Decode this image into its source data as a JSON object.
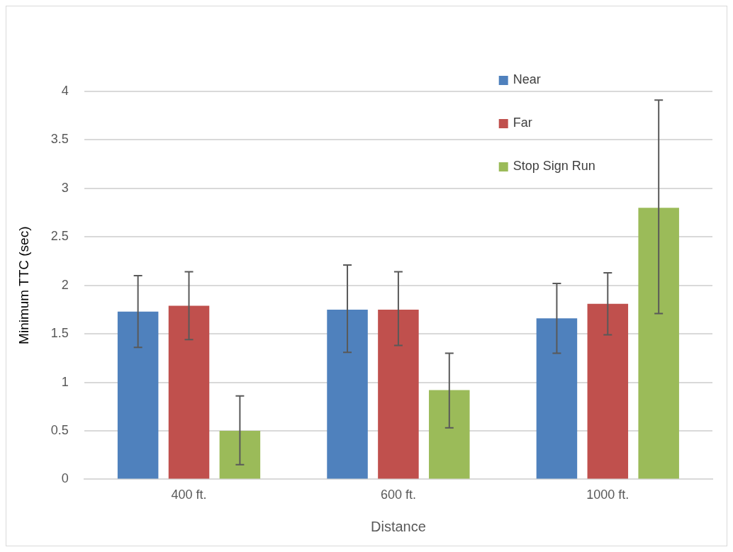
{
  "chart_data": {
    "type": "bar",
    "xlabel": "Distance",
    "ylabel": "Minimum TTC (sec)",
    "categories": [
      "400 ft.",
      "600 ft.",
      "1000 ft."
    ],
    "series": [
      {
        "name": "Near",
        "color": "#4f81bd",
        "values": [
          1.73,
          1.75,
          1.66
        ],
        "errors": [
          [
            1.36,
            2.1
          ],
          [
            1.31,
            2.21
          ],
          [
            1.3,
            2.02
          ]
        ]
      },
      {
        "name": "Far",
        "color": "#c0504d",
        "values": [
          1.79,
          1.75,
          1.81
        ],
        "errors": [
          [
            1.44,
            2.14
          ],
          [
            1.38,
            2.14
          ],
          [
            1.49,
            2.13
          ]
        ]
      },
      {
        "name": "Stop Sign Run",
        "color": "#9bbb59",
        "values": [
          0.5,
          0.92,
          2.8
        ],
        "errors": [
          [
            0.15,
            0.86
          ],
          [
            0.53,
            1.3
          ],
          [
            1.71,
            3.91
          ]
        ]
      }
    ],
    "ylim": [
      0,
      4
    ],
    "yticks": [
      0,
      0.5,
      1,
      1.5,
      2,
      2.5,
      3,
      3.5,
      4
    ],
    "grid": "y",
    "legend": "top right"
  }
}
